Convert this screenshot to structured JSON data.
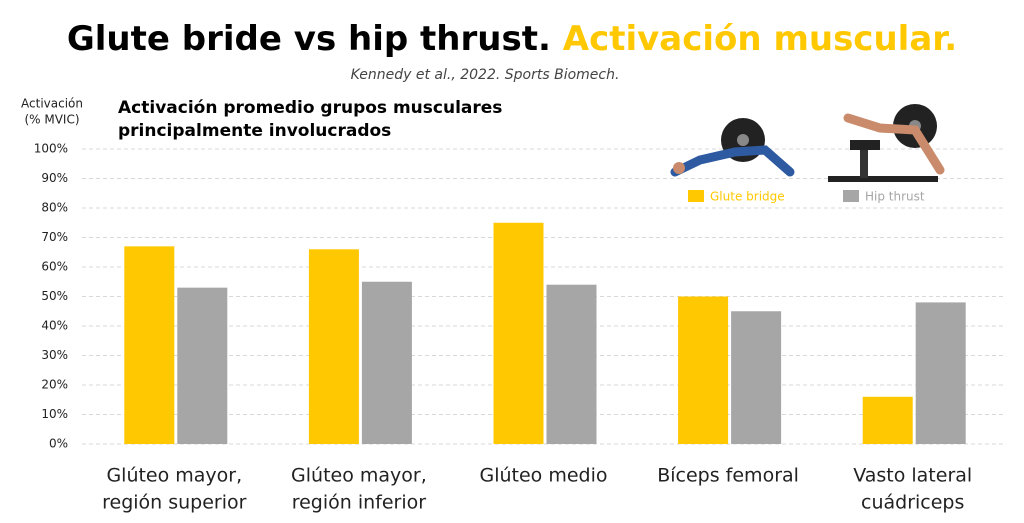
{
  "chart_data": {
    "type": "bar",
    "title": [
      "Glute bride vs hip thrust.",
      "Activación muscular."
    ],
    "subtitle": "Kennedy et al., 2022. Sports Biomech.",
    "chart_subtitle": [
      "Activación promedio grupos musculares",
      "principalmente involucrados"
    ],
    "ylabel": [
      "Activación",
      "(% MVIC)"
    ],
    "categories": [
      [
        "Glúteo mayor,",
        "región superior"
      ],
      [
        "Glúteo mayor,",
        "región inferior"
      ],
      [
        "Glúteo medio"
      ],
      [
        "Bíceps femoral"
      ],
      [
        "Vasto lateral",
        "cuádriceps"
      ]
    ],
    "series": [
      {
        "name": "Glute bridge",
        "color": "#ffc800",
        "values": [
          67,
          66,
          75,
          50,
          16
        ]
      },
      {
        "name": "Hip thrust",
        "color": "#a6a6a6",
        "values": [
          53,
          55,
          54,
          45,
          48
        ]
      }
    ],
    "ylim": [
      0,
      100
    ],
    "yticks": [
      {
        "value": 0,
        "label": "0%"
      },
      {
        "value": 10,
        "label": "10%"
      },
      {
        "value": 20,
        "label": "20%"
      },
      {
        "value": 30,
        "label": "30%"
      },
      {
        "value": 40,
        "label": "40%"
      },
      {
        "value": 50,
        "label": "50%"
      },
      {
        "value": 60,
        "label": "60%"
      },
      {
        "value": 70,
        "label": "70%"
      },
      {
        "value": 80,
        "label": "80%"
      },
      {
        "value": 90,
        "label": "90%"
      },
      {
        "value": 100,
        "label": "100%"
      }
    ],
    "grid": true
  }
}
